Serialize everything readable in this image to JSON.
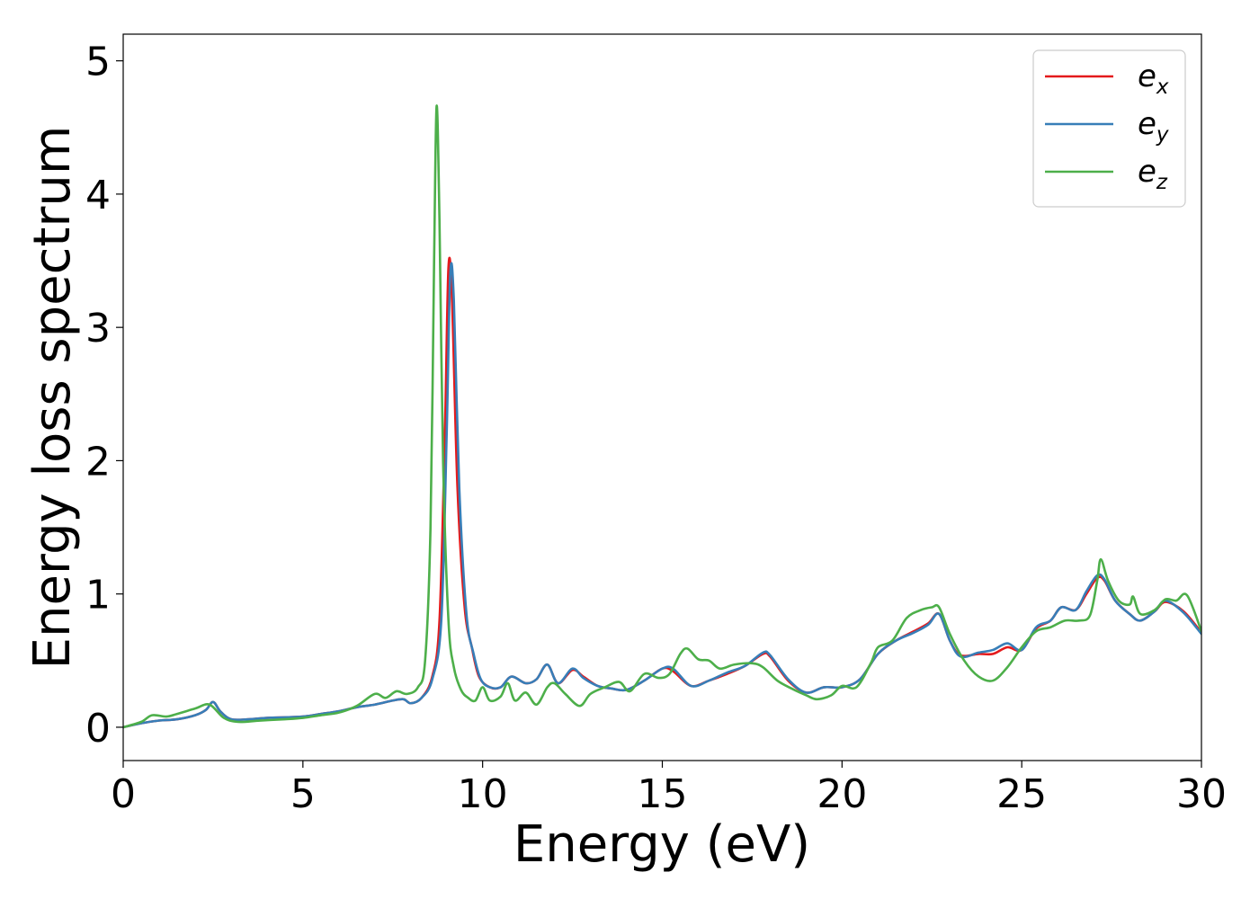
{
  "chart_data": {
    "type": "line",
    "title": "",
    "xlabel": "Energy (eV)",
    "ylabel": "Energy loss spectrum",
    "xlim": [
      0,
      30
    ],
    "ylim": [
      -0.25,
      5.2
    ],
    "xticks": [
      "0",
      "5",
      "10",
      "15",
      "20",
      "25",
      "30"
    ],
    "yticks": [
      "0",
      "1",
      "2",
      "3",
      "4",
      "5"
    ],
    "grid": false,
    "legend_position": "top-right",
    "series": [
      {
        "name": "e_x",
        "label_base": "e",
        "label_sub": "x",
        "color": "#e41a1c",
        "points": [
          [
            0,
            0
          ],
          [
            0.5,
            0.03
          ],
          [
            1,
            0.05
          ],
          [
            1.5,
            0.06
          ],
          [
            2,
            0.09
          ],
          [
            2.3,
            0.13
          ],
          [
            2.5,
            0.19
          ],
          [
            2.7,
            0.12
          ],
          [
            3,
            0.06
          ],
          [
            3.5,
            0.06
          ],
          [
            4,
            0.07
          ],
          [
            5,
            0.08
          ],
          [
            5.5,
            0.1
          ],
          [
            6,
            0.12
          ],
          [
            6.5,
            0.15
          ],
          [
            7,
            0.17
          ],
          [
            7.5,
            0.2
          ],
          [
            7.8,
            0.21
          ],
          [
            8,
            0.18
          ],
          [
            8.3,
            0.22
          ],
          [
            8.6,
            0.38
          ],
          [
            8.8,
            0.8
          ],
          [
            8.95,
            2.2
          ],
          [
            9.05,
            3.45
          ],
          [
            9.15,
            3.2
          ],
          [
            9.3,
            1.8
          ],
          [
            9.5,
            0.9
          ],
          [
            9.7,
            0.6
          ],
          [
            9.9,
            0.38
          ],
          [
            10.2,
            0.3
          ],
          [
            10.5,
            0.3
          ],
          [
            10.8,
            0.38
          ],
          [
            11.2,
            0.33
          ],
          [
            11.5,
            0.36
          ],
          [
            11.8,
            0.47
          ],
          [
            12.1,
            0.33
          ],
          [
            12.5,
            0.43
          ],
          [
            12.8,
            0.38
          ],
          [
            13.2,
            0.31
          ],
          [
            13.6,
            0.29
          ],
          [
            14,
            0.28
          ],
          [
            14.5,
            0.35
          ],
          [
            15,
            0.44
          ],
          [
            15.3,
            0.42
          ],
          [
            15.8,
            0.31
          ],
          [
            16.3,
            0.35
          ],
          [
            16.8,
            0.4
          ],
          [
            17.3,
            0.46
          ],
          [
            17.8,
            0.55
          ],
          [
            18,
            0.53
          ],
          [
            18.5,
            0.35
          ],
          [
            19,
            0.26
          ],
          [
            19.5,
            0.3
          ],
          [
            20,
            0.3
          ],
          [
            20.5,
            0.36
          ],
          [
            21,
            0.55
          ],
          [
            21.5,
            0.65
          ],
          [
            22,
            0.72
          ],
          [
            22.4,
            0.78
          ],
          [
            22.7,
            0.85
          ],
          [
            23,
            0.65
          ],
          [
            23.3,
            0.54
          ],
          [
            23.8,
            0.55
          ],
          [
            24.2,
            0.55
          ],
          [
            24.6,
            0.6
          ],
          [
            25,
            0.58
          ],
          [
            25.4,
            0.74
          ],
          [
            25.8,
            0.8
          ],
          [
            26.1,
            0.9
          ],
          [
            26.5,
            0.88
          ],
          [
            26.8,
            1.0
          ],
          [
            27.1,
            1.12
          ],
          [
            27.3,
            1.1
          ],
          [
            27.6,
            0.95
          ],
          [
            28,
            0.85
          ],
          [
            28.3,
            0.8
          ],
          [
            28.7,
            0.87
          ],
          [
            29,
            0.94
          ],
          [
            29.5,
            0.87
          ],
          [
            30,
            0.71
          ]
        ]
      },
      {
        "name": "e_y",
        "label_base": "e",
        "label_sub": "y",
        "color": "#377eb8",
        "points": [
          [
            0,
            0
          ],
          [
            0.5,
            0.03
          ],
          [
            1,
            0.05
          ],
          [
            1.5,
            0.06
          ],
          [
            2,
            0.09
          ],
          [
            2.3,
            0.13
          ],
          [
            2.5,
            0.19
          ],
          [
            2.7,
            0.12
          ],
          [
            3,
            0.06
          ],
          [
            3.5,
            0.06
          ],
          [
            4,
            0.07
          ],
          [
            5,
            0.08
          ],
          [
            5.5,
            0.1
          ],
          [
            6,
            0.12
          ],
          [
            6.5,
            0.15
          ],
          [
            7,
            0.17
          ],
          [
            7.5,
            0.2
          ],
          [
            7.8,
            0.21
          ],
          [
            8,
            0.18
          ],
          [
            8.3,
            0.22
          ],
          [
            8.6,
            0.36
          ],
          [
            8.85,
            0.8
          ],
          [
            9.0,
            2.2
          ],
          [
            9.1,
            3.4
          ],
          [
            9.2,
            3.2
          ],
          [
            9.35,
            1.8
          ],
          [
            9.55,
            0.85
          ],
          [
            9.75,
            0.55
          ],
          [
            9.95,
            0.36
          ],
          [
            10.2,
            0.3
          ],
          [
            10.5,
            0.3
          ],
          [
            10.8,
            0.38
          ],
          [
            11.2,
            0.33
          ],
          [
            11.5,
            0.36
          ],
          [
            11.8,
            0.47
          ],
          [
            12.1,
            0.33
          ],
          [
            12.5,
            0.44
          ],
          [
            12.8,
            0.37
          ],
          [
            13.2,
            0.31
          ],
          [
            13.6,
            0.29
          ],
          [
            14,
            0.28
          ],
          [
            14.5,
            0.35
          ],
          [
            15,
            0.44
          ],
          [
            15.3,
            0.44
          ],
          [
            15.8,
            0.31
          ],
          [
            16.3,
            0.35
          ],
          [
            16.8,
            0.41
          ],
          [
            17.3,
            0.46
          ],
          [
            17.8,
            0.56
          ],
          [
            18,
            0.54
          ],
          [
            18.5,
            0.36
          ],
          [
            19,
            0.26
          ],
          [
            19.5,
            0.3
          ],
          [
            20,
            0.3
          ],
          [
            20.5,
            0.36
          ],
          [
            21,
            0.55
          ],
          [
            21.5,
            0.65
          ],
          [
            22,
            0.71
          ],
          [
            22.4,
            0.77
          ],
          [
            22.7,
            0.85
          ],
          [
            23,
            0.65
          ],
          [
            23.3,
            0.53
          ],
          [
            23.8,
            0.56
          ],
          [
            24.2,
            0.58
          ],
          [
            24.6,
            0.63
          ],
          [
            25,
            0.58
          ],
          [
            25.4,
            0.75
          ],
          [
            25.8,
            0.8
          ],
          [
            26.1,
            0.9
          ],
          [
            26.5,
            0.88
          ],
          [
            26.8,
            1.02
          ],
          [
            27.1,
            1.14
          ],
          [
            27.3,
            1.11
          ],
          [
            27.6,
            0.95
          ],
          [
            28,
            0.85
          ],
          [
            28.3,
            0.8
          ],
          [
            28.7,
            0.87
          ],
          [
            29,
            0.95
          ],
          [
            29.5,
            0.86
          ],
          [
            30,
            0.7
          ]
        ]
      },
      {
        "name": "e_z",
        "label_base": "e",
        "label_sub": "z",
        "color": "#4daf4a",
        "points": [
          [
            0,
            0
          ],
          [
            0.5,
            0.04
          ],
          [
            0.8,
            0.09
          ],
          [
            1.2,
            0.08
          ],
          [
            1.5,
            0.1
          ],
          [
            2,
            0.14
          ],
          [
            2.4,
            0.17
          ],
          [
            2.8,
            0.07
          ],
          [
            3.2,
            0.04
          ],
          [
            3.8,
            0.05
          ],
          [
            4.5,
            0.06
          ],
          [
            5,
            0.07
          ],
          [
            5.5,
            0.09
          ],
          [
            6,
            0.11
          ],
          [
            6.5,
            0.16
          ],
          [
            7,
            0.25
          ],
          [
            7.3,
            0.22
          ],
          [
            7.6,
            0.27
          ],
          [
            7.9,
            0.25
          ],
          [
            8.2,
            0.3
          ],
          [
            8.4,
            0.5
          ],
          [
            8.55,
            1.5
          ],
          [
            8.65,
            3.5
          ],
          [
            8.72,
            4.66
          ],
          [
            8.8,
            3.8
          ],
          [
            8.9,
            2.0
          ],
          [
            9.05,
            0.8
          ],
          [
            9.2,
            0.45
          ],
          [
            9.4,
            0.28
          ],
          [
            9.6,
            0.22
          ],
          [
            9.8,
            0.2
          ],
          [
            10,
            0.3
          ],
          [
            10.2,
            0.2
          ],
          [
            10.5,
            0.23
          ],
          [
            10.7,
            0.33
          ],
          [
            10.9,
            0.2
          ],
          [
            11.2,
            0.26
          ],
          [
            11.5,
            0.17
          ],
          [
            11.8,
            0.3
          ],
          [
            12,
            0.33
          ],
          [
            12.3,
            0.25
          ],
          [
            12.7,
            0.16
          ],
          [
            13,
            0.25
          ],
          [
            13.4,
            0.3
          ],
          [
            13.8,
            0.34
          ],
          [
            14.1,
            0.27
          ],
          [
            14.5,
            0.4
          ],
          [
            14.9,
            0.37
          ],
          [
            15.2,
            0.4
          ],
          [
            15.5,
            0.55
          ],
          [
            15.7,
            0.59
          ],
          [
            16,
            0.51
          ],
          [
            16.3,
            0.5
          ],
          [
            16.6,
            0.44
          ],
          [
            17,
            0.47
          ],
          [
            17.5,
            0.48
          ],
          [
            17.8,
            0.45
          ],
          [
            18.2,
            0.35
          ],
          [
            18.6,
            0.29
          ],
          [
            19,
            0.24
          ],
          [
            19.3,
            0.21
          ],
          [
            19.7,
            0.24
          ],
          [
            20,
            0.31
          ],
          [
            20.4,
            0.3
          ],
          [
            20.8,
            0.48
          ],
          [
            21,
            0.6
          ],
          [
            21.4,
            0.65
          ],
          [
            21.8,
            0.82
          ],
          [
            22.2,
            0.88
          ],
          [
            22.5,
            0.9
          ],
          [
            22.7,
            0.9
          ],
          [
            23,
            0.7
          ],
          [
            23.4,
            0.5
          ],
          [
            23.8,
            0.38
          ],
          [
            24.2,
            0.35
          ],
          [
            24.6,
            0.45
          ],
          [
            25,
            0.6
          ],
          [
            25.4,
            0.72
          ],
          [
            25.8,
            0.75
          ],
          [
            26.2,
            0.8
          ],
          [
            26.6,
            0.8
          ],
          [
            26.9,
            0.84
          ],
          [
            27.1,
            1.1
          ],
          [
            27.2,
            1.26
          ],
          [
            27.4,
            1.1
          ],
          [
            27.7,
            0.95
          ],
          [
            28,
            0.92
          ],
          [
            28.1,
            0.98
          ],
          [
            28.3,
            0.85
          ],
          [
            28.7,
            0.88
          ],
          [
            29,
            0.96
          ],
          [
            29.3,
            0.95
          ],
          [
            29.6,
            0.99
          ],
          [
            30,
            0.72
          ]
        ]
      }
    ]
  }
}
